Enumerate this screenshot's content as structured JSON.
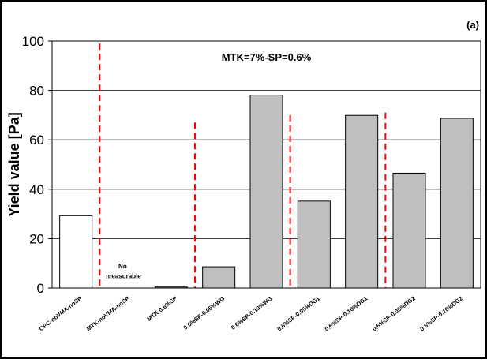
{
  "chart_data": {
    "type": "bar",
    "panel_label": "(a)",
    "annotation": "MTK=7%-SP=0.6%",
    "no_data_note": [
      "No",
      "measurable"
    ],
    "ylabel": "Yield value [Pa]",
    "xlabel": "",
    "ylim": [
      0,
      100
    ],
    "yticks": [
      0,
      20,
      40,
      60,
      80,
      100
    ],
    "grid": true,
    "categories": [
      "OPC-noVMA-noSP",
      "MTK-noVMA-noSP",
      "MTK-0.6%SP",
      "0.6%SP-0.05%WG",
      "0.6%SP-0.10%WG",
      "0.6%SP-0.05%DG1",
      "0.6%SP-0.10%DG1",
      "0.6%SP-0.05%DG2",
      "0.6%SP-0.10%DG2"
    ],
    "values": [
      29.3,
      0,
      0.4,
      8.6,
      78.1,
      35.2,
      69.9,
      46.5,
      68.7
    ],
    "bar_colors": [
      "#ffffff",
      "#bfbfbf",
      "#bfbfbf",
      "#bfbfbf",
      "#bfbfbf",
      "#bfbfbf",
      "#bfbfbf",
      "#bfbfbf",
      "#bfbfbf"
    ],
    "separators": [
      {
        "between": [
          0,
          1
        ],
        "top_value": 99
      },
      {
        "between": [
          2,
          3
        ],
        "top_value": 67
      },
      {
        "between": [
          4,
          5
        ],
        "top_value": 70
      },
      {
        "between": [
          6,
          7
        ],
        "top_value": 71
      }
    ],
    "separator_color": "#ff0000",
    "grid_color": "#000000"
  }
}
